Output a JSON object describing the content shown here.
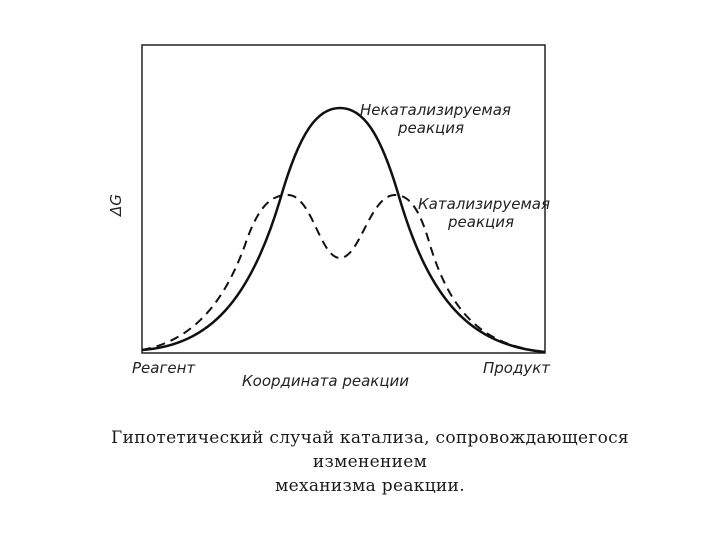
{
  "diagram": {
    "y_axis_label": "ΔG",
    "x_axis_label": "Координата реакции",
    "left_state_label": "Реагент",
    "right_state_label": "Продукт",
    "uncatalyzed_label": [
      "Некатализируемая",
      "реакция"
    ],
    "catalyzed_label": [
      "Катализируемая",
      "реакция"
    ]
  },
  "caption": {
    "line1": "Гипотетический случай катализа, сопровождающегося изменением",
    "line2": "механизма реакции."
  }
}
